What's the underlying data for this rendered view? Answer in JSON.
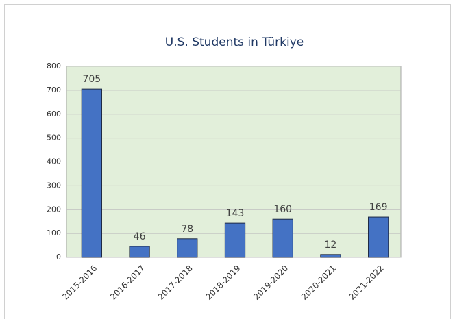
{
  "chart_data": {
    "type": "bar",
    "title": "U.S. Students in Türkiye",
    "categories": [
      "2015-2016",
      "2016-2017",
      "2017-2018",
      "2018-2019",
      "2019-2020",
      "2020-2021",
      "2021-2022"
    ],
    "values": [
      705,
      46,
      78,
      143,
      160,
      12,
      169
    ],
    "color": "#4472c4",
    "ylim": [
      0,
      800
    ],
    "yticks": [
      0,
      100,
      200,
      300,
      400,
      500,
      600,
      700,
      800
    ],
    "grid": true
  }
}
